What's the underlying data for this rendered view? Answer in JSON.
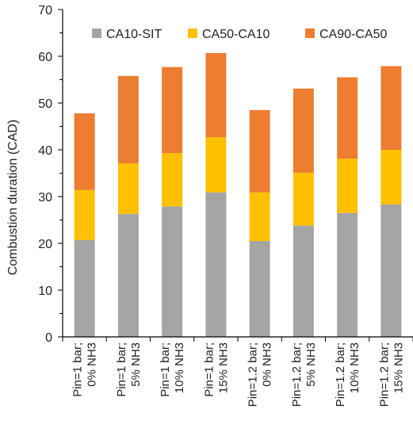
{
  "chart_data": {
    "type": "bar",
    "stacked": true,
    "title": "",
    "xlabel": "",
    "ylabel": "Combustion duration (CAD)",
    "ylim": [
      0,
      70
    ],
    "yticks": [
      0,
      10,
      20,
      30,
      40,
      50,
      60,
      70
    ],
    "grid": false,
    "legend_position": "top",
    "categories": [
      {
        "line1": "Pin=1 bar;",
        "line2": "0% NH3"
      },
      {
        "line1": "Pin=1 bar;",
        "line2": "5% NH3"
      },
      {
        "line1": "Pin=1 bar;",
        "line2": "10% NH3"
      },
      {
        "line1": "Pin=1 bar;",
        "line2": "15% NH3"
      },
      {
        "line1": "Pin=1.2 bar;",
        "line2": "0% NH3"
      },
      {
        "line1": "Pin=1.2 bar;",
        "line2": "5% NH3"
      },
      {
        "line1": "Pin=1.2 bar;",
        "line2": "10% NH3"
      },
      {
        "line1": "Pin=1.2 bar;",
        "line2": "15% NH3"
      }
    ],
    "series": [
      {
        "name": "CA10-SIT",
        "color": "#a5a5a5",
        "values": [
          20.7,
          26.3,
          27.9,
          30.9,
          20.5,
          23.8,
          26.5,
          28.3
        ]
      },
      {
        "name": "CA50-CA10",
        "color": "#ffc000",
        "values": [
          10.7,
          10.8,
          11.4,
          11.8,
          10.4,
          11.3,
          11.6,
          11.7
        ]
      },
      {
        "name": "CA90-CA50",
        "color": "#ed7d31",
        "values": [
          16.4,
          18.7,
          18.4,
          18.0,
          17.6,
          18.0,
          17.4,
          17.9
        ]
      }
    ]
  }
}
